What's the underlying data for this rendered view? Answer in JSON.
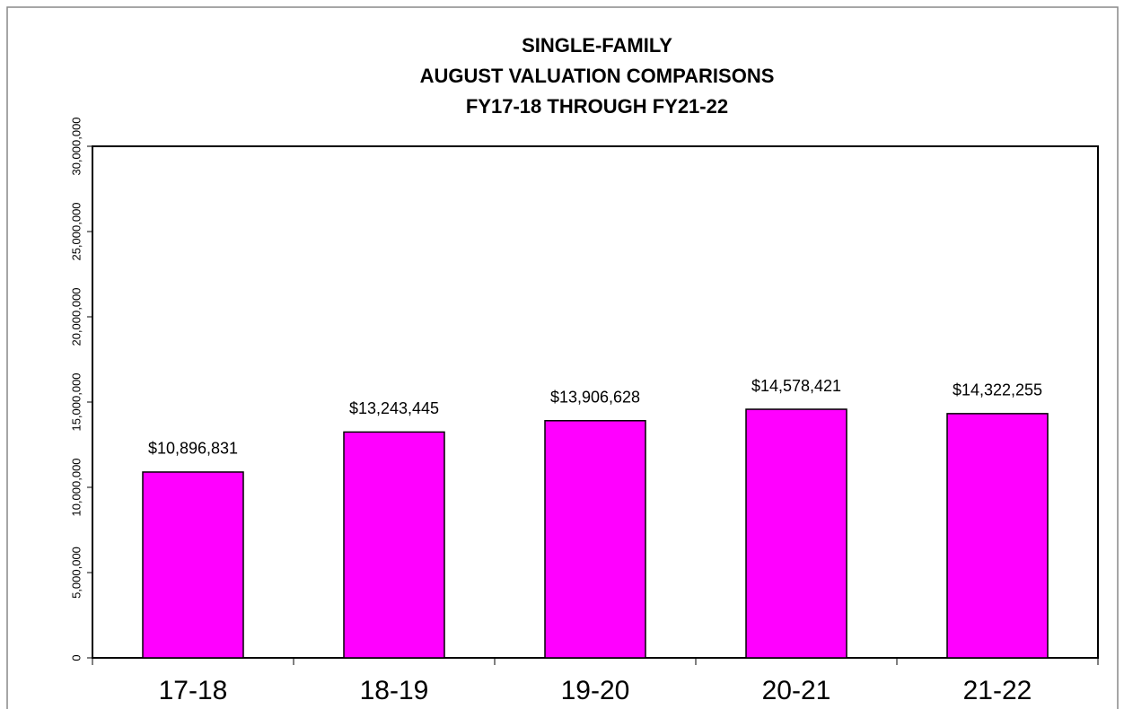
{
  "chart_data": {
    "type": "bar",
    "title": [
      "SINGLE-FAMILY",
      "AUGUST VALUATION COMPARISONS",
      "FY17-18 THROUGH FY21-22"
    ],
    "categories": [
      "17-18",
      "18-19",
      "19-20",
      "20-21",
      "21-22"
    ],
    "values": [
      10896831,
      13243445,
      13906628,
      14578421,
      14322255
    ],
    "value_labels": [
      "$10,896,831",
      "$13,243,445",
      "$13,906,628",
      "$14,578,421",
      "$14,322,255"
    ],
    "color": "#ff00ff",
    "ylim": [
      0,
      30000000
    ],
    "yticks": [
      0,
      {
        "value": 5000000,
        "label": "5,000,000"
      },
      {
        "value": 10000000,
        "label": "10,000,000"
      },
      {
        "value": 15000000,
        "label": "15,000,000"
      },
      {
        "value": 20000000,
        "label": "20,000,000"
      },
      {
        "value": 25000000,
        "label": "25,000,000"
      },
      {
        "value": 30000000,
        "label": "30,000,000"
      }
    ],
    "grid": false
  }
}
